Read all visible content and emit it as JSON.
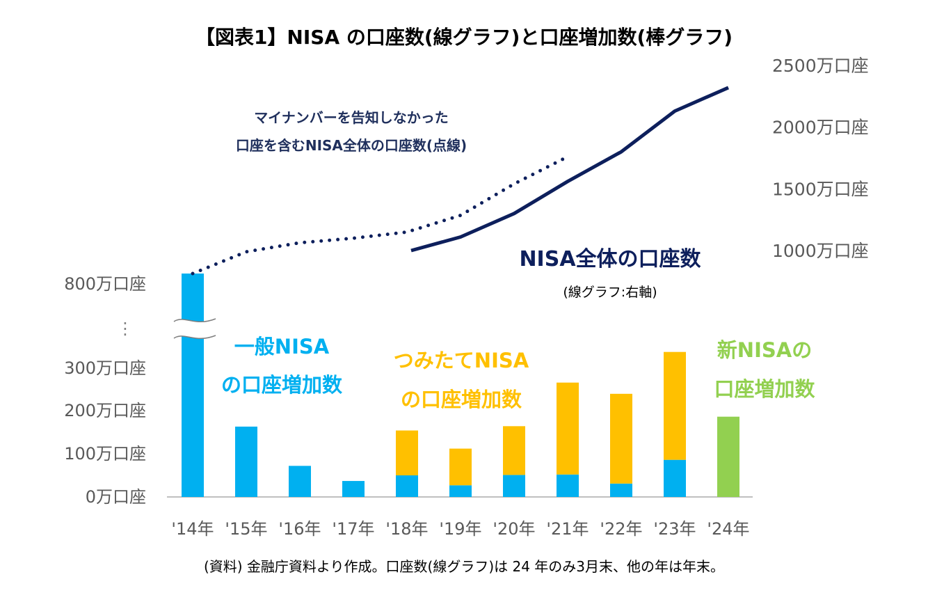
{
  "title": "【図表1】NISA の口座数(線グラフ)と口座増加数(棒グラフ)",
  "source": "(資料) 金融庁資料より作成。口座数(線グラフ)は 24 年のみ3月末、他の年は年末。",
  "colors": {
    "general_nisa": "#00b0f0",
    "tsumitate_nisa": "#ffc000",
    "new_nisa": "#92d050",
    "total_line": "#0d1f5c",
    "axis_text": "#595959",
    "axis_line": "#bfbfbf"
  },
  "chart_data": {
    "type": "bar",
    "categories": [
      "'14年",
      "'15年",
      "'16年",
      "'17年",
      "'18年",
      "'19年",
      "'20年",
      "'21年",
      "'22年",
      "'23年",
      "'24年"
    ],
    "series": [
      {
        "name": "一般NISA の口座増加数",
        "values": [
          826,
          163,
          72,
          37,
          50,
          27,
          51,
          52,
          31,
          86,
          0
        ]
      },
      {
        "name": "つみたてNISA の口座増加数",
        "values": [
          0,
          0,
          0,
          0,
          104,
          85,
          113,
          213,
          208,
          250,
          0
        ]
      },
      {
        "name": "新NISAの 口座増加数",
        "values": [
          0,
          0,
          0,
          0,
          0,
          0,
          0,
          0,
          0,
          0,
          186
        ]
      }
    ],
    "left_axis": {
      "tick_labels": [
        "0万口座",
        "100万口座",
        "200万口座",
        "300万口座",
        "800万口座"
      ],
      "ylim": [
        0,
        800
      ],
      "break_symbol": "⋮"
    },
    "right_axis": {
      "tick_labels": [
        "1000万口座",
        "1500万口座",
        "2000万口座",
        "2500万口座"
      ],
      "ylim": [
        1000,
        2500
      ]
    },
    "line_dotted": {
      "name": "マイナンバーを告知しなかった 口座を含むNISA全体の口座数(点線)",
      "x": [
        "'14年",
        "'15年",
        "'16年",
        "'17年",
        "'18年",
        "'19年",
        "'20年",
        "'21年"
      ],
      "values": [
        825,
        990,
        1063,
        1100,
        1150,
        1285,
        1540,
        1760
      ]
    },
    "line_solid": {
      "name": "NISA全体の口座数",
      "x": [
        "'18年",
        "'19年",
        "'20年",
        "'21年",
        "'22年",
        "'23年",
        "'24年"
      ],
      "values": [
        1000,
        1110,
        1300,
        1560,
        1800,
        2130,
        2320
      ]
    },
    "annotations": {
      "dotted_note_line1": "マイナンバーを告知しなかった",
      "dotted_note_line2": "口座を含むNISA全体の口座数(点線)",
      "total_label": "NISA全体の口座数",
      "total_sub": "(線グラフ:右軸)",
      "general_line1": "一般NISA",
      "general_line2": "の口座増加数",
      "tsumitate_line1": "つみたてNISA",
      "tsumitate_line2": "の口座増加数",
      "new_line1": "新NISAの",
      "new_line2": "口座増加数"
    }
  }
}
